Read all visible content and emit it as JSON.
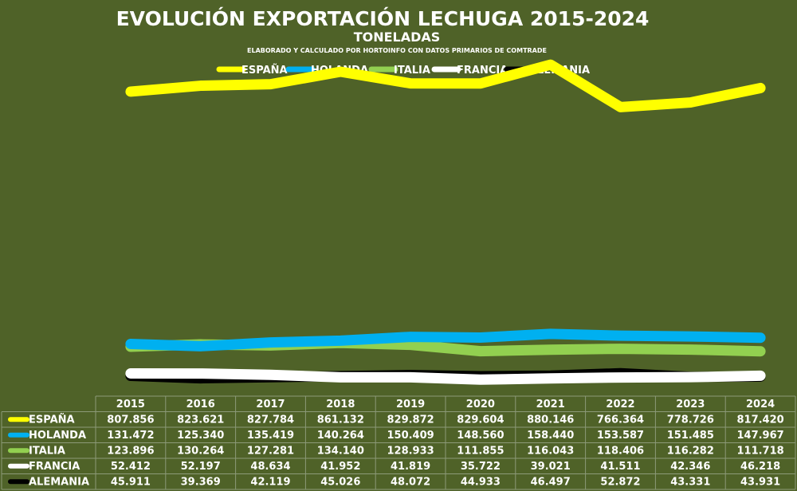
{
  "chart_data": {
    "type": "line",
    "title": "EVOLUCIÓN EXPORTACIÓN LECHUGA 2015-2024",
    "subtitle": "TONELADAS",
    "source_note": "ELABORADO Y CALCULADO POR HORTOINFO CON DATOS PRIMARIOS DE COMTRADE",
    "categories": [
      "2015",
      "2016",
      "2017",
      "2018",
      "2019",
      "2020",
      "2021",
      "2022",
      "2023",
      "2024"
    ],
    "ylim": [
      0,
      1000000
    ],
    "legend_position": "top",
    "grid": false,
    "series": [
      {
        "name": "ESPAÑA",
        "color": "#ffff00",
        "values": [
          807856,
          823621,
          827784,
          861132,
          829872,
          829604,
          880146,
          766364,
          778726,
          817420
        ],
        "labels": [
          "807.856",
          "823.621",
          "827.784",
          "861.132",
          "829.872",
          "829.604",
          "880.146",
          "766.364",
          "778.726",
          "817.420"
        ]
      },
      {
        "name": "HOLANDA",
        "color": "#00b0f0",
        "values": [
          131472,
          125340,
          135419,
          140264,
          150409,
          148560,
          158440,
          153587,
          151485,
          147967
        ],
        "labels": [
          "131.472",
          "125.340",
          "135.419",
          "140.264",
          "150.409",
          "148.560",
          "158.440",
          "153.587",
          "151.485",
          "147.967"
        ]
      },
      {
        "name": "ITALIA",
        "color": "#92d050",
        "values": [
          123896,
          130264,
          127281,
          134140,
          128933,
          111855,
          116043,
          118406,
          116282,
          111718
        ],
        "labels": [
          "123.896",
          "130.264",
          "127.281",
          "134.140",
          "128.933",
          "111.855",
          "116.043",
          "118.406",
          "116.282",
          "111.718"
        ]
      },
      {
        "name": "FRANCIA",
        "color": "#ffffff",
        "values": [
          52412,
          52197,
          48634,
          41952,
          41819,
          35722,
          39021,
          41511,
          42346,
          46218
        ],
        "labels": [
          "52.412",
          "52.197",
          "48.634",
          "41.952",
          "41.819",
          "35.722",
          "39.021",
          "41.511",
          "42.346",
          "46.218"
        ]
      },
      {
        "name": "ALEMANIA",
        "color": "#000000",
        "values": [
          45911,
          39369,
          42119,
          45026,
          48072,
          44933,
          46497,
          52872,
          43331,
          43931
        ],
        "labels": [
          "45.911",
          "39.369",
          "42.119",
          "45.026",
          "48.072",
          "44.933",
          "46.497",
          "52.872",
          "43.331",
          "43.931"
        ]
      }
    ]
  }
}
